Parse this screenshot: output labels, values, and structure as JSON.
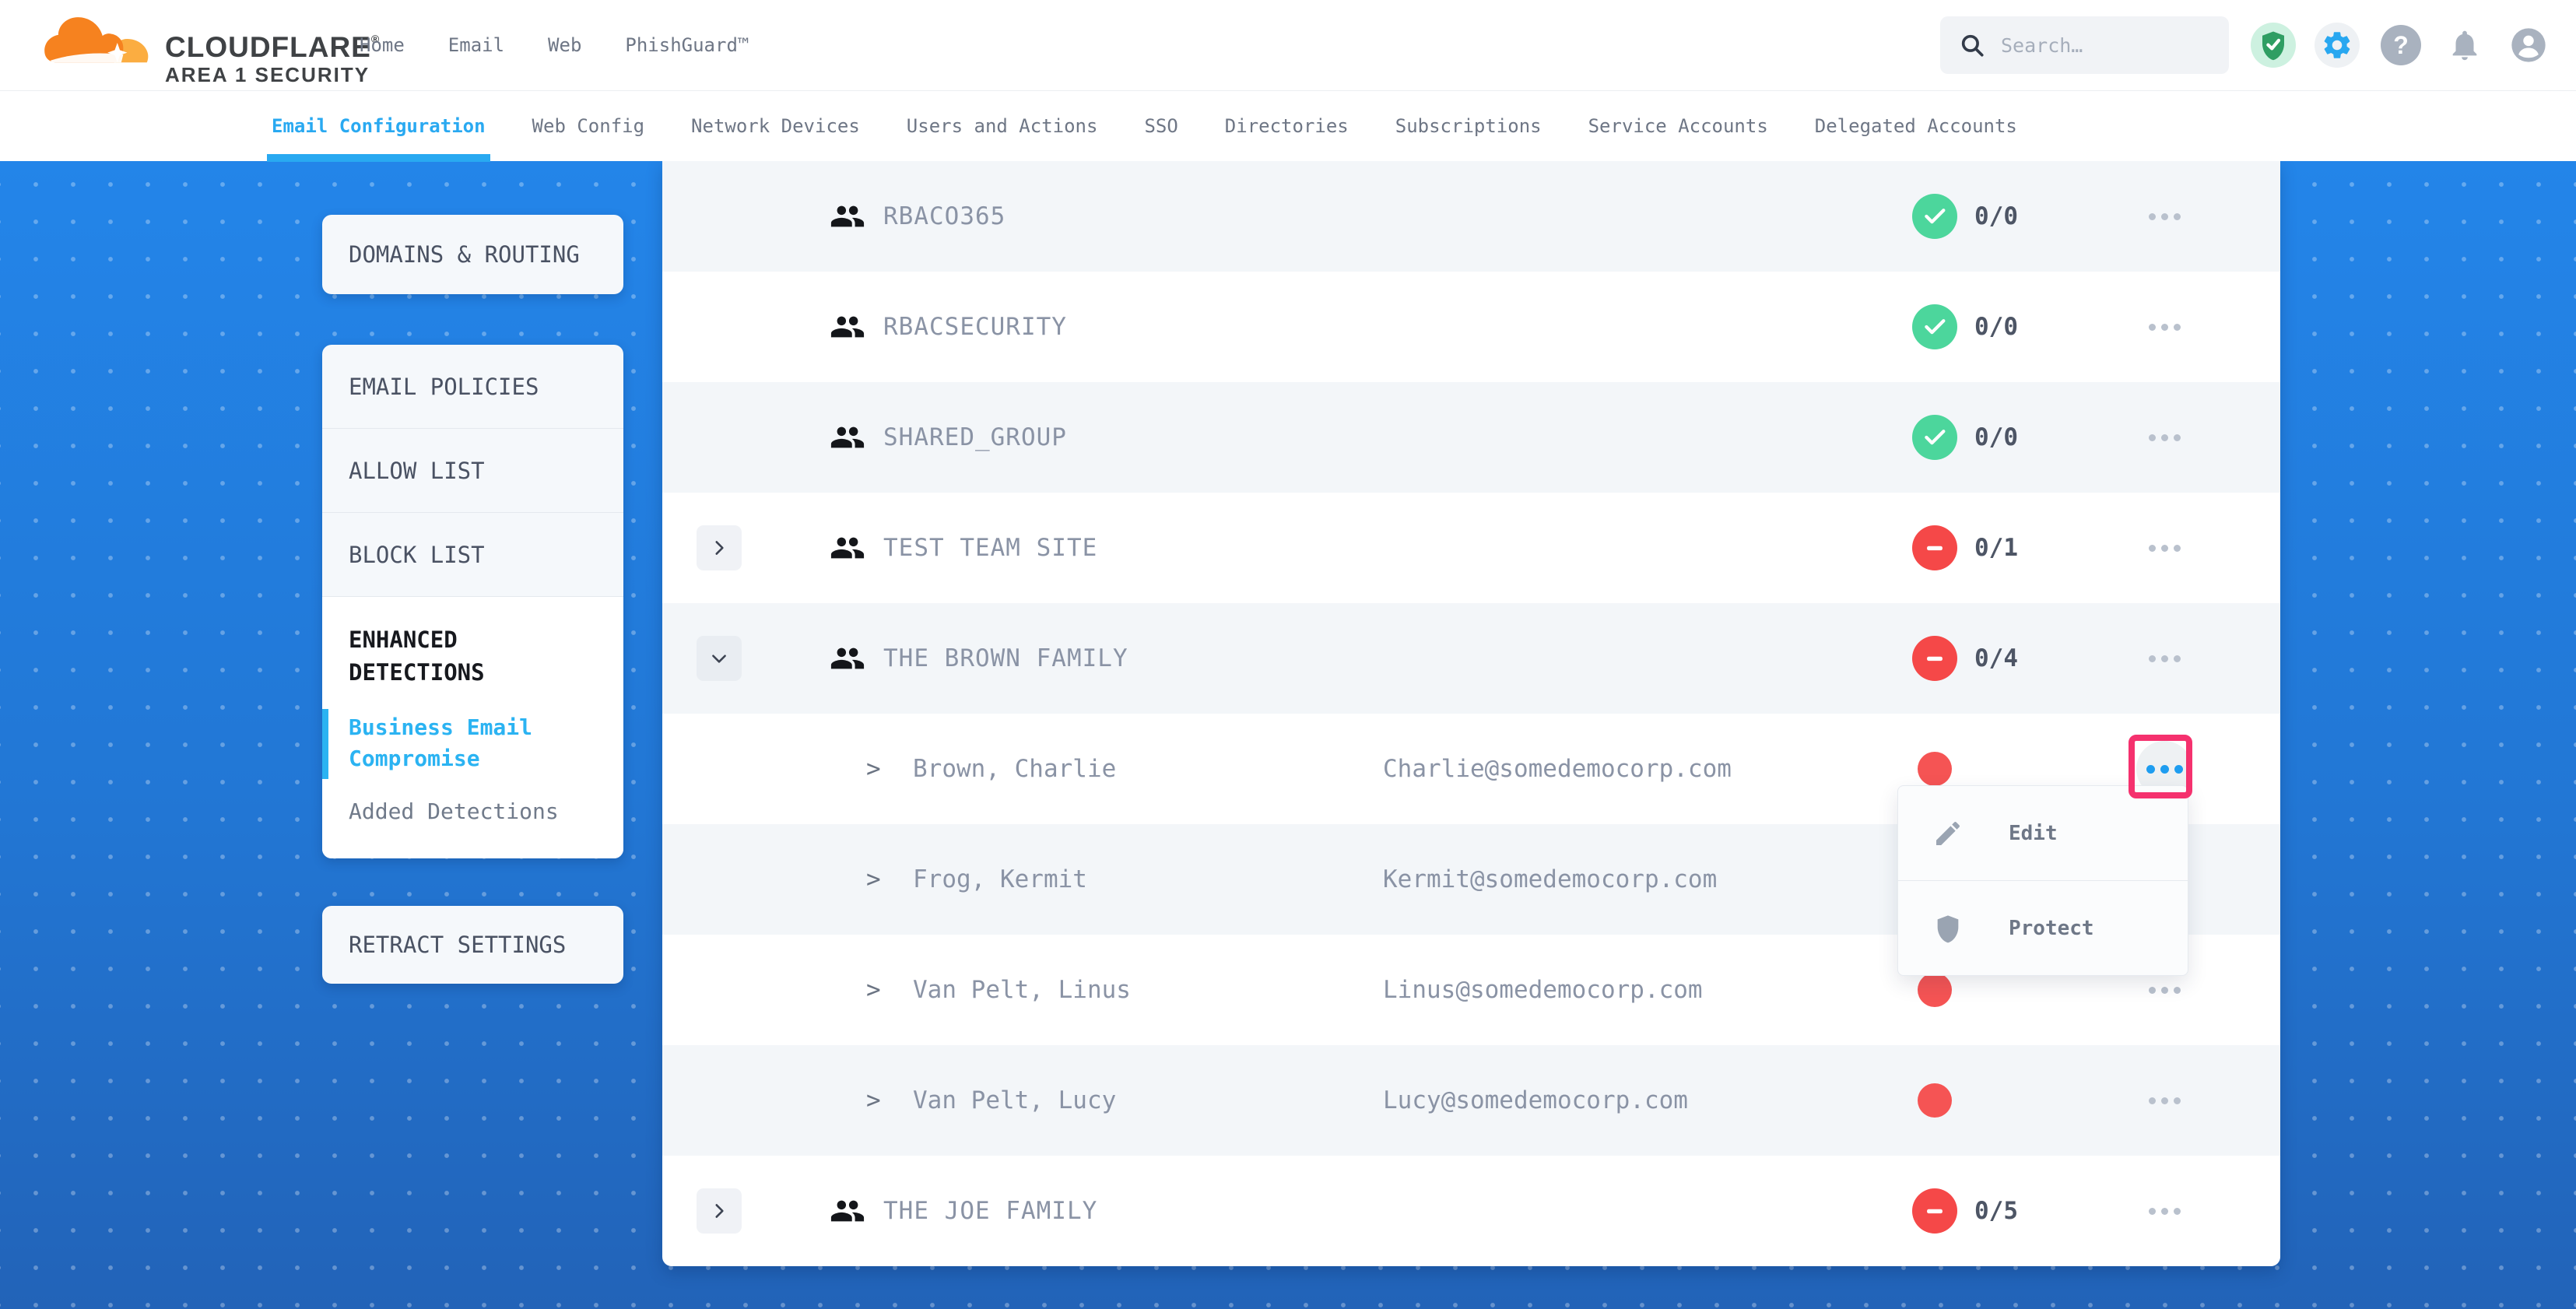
{
  "header": {
    "logo": {
      "brand": "CLOUDFLARE",
      "registered": "®",
      "sub": "AREA 1 SECURITY"
    },
    "nav": [
      "Home",
      "Email",
      "Web",
      "PhishGuard™"
    ],
    "search": {
      "placeholder": "Search…"
    },
    "icons": [
      "shield-check-icon",
      "gear-icon",
      "help-icon",
      "bell-icon",
      "account-icon"
    ]
  },
  "subnav": {
    "tabs": [
      {
        "label": "Email Configuration",
        "active": true
      },
      {
        "label": "Web Config",
        "active": false
      },
      {
        "label": "Network Devices",
        "active": false
      },
      {
        "label": "Users and Actions",
        "active": false
      },
      {
        "label": "SSO",
        "active": false
      },
      {
        "label": "Directories",
        "active": false
      },
      {
        "label": "Subscriptions",
        "active": false
      },
      {
        "label": "Service Accounts",
        "active": false
      },
      {
        "label": "Delegated Accounts",
        "active": false
      }
    ]
  },
  "sidebar": {
    "domains_routing": "DOMAINS & ROUTING",
    "policy_items": [
      "EMAIL POLICIES",
      "ALLOW LIST",
      "BLOCK LIST"
    ],
    "enhanced": {
      "title": "ENHANCED DETECTIONS",
      "items": [
        {
          "label": "Business Email Compromise",
          "active": true
        },
        {
          "label": "Added Detections",
          "active": false
        }
      ]
    },
    "retract": "RETRACT SETTINGS"
  },
  "table": {
    "rows": [
      {
        "kind": "group",
        "name": "RBACO365",
        "count": "0/0",
        "status": "ok",
        "expandable": false
      },
      {
        "kind": "group",
        "name": "RBACSECURITY",
        "count": "0/0",
        "status": "ok",
        "expandable": false
      },
      {
        "kind": "group",
        "name": "SHARED_GROUP",
        "count": "0/0",
        "status": "ok",
        "expandable": false
      },
      {
        "kind": "group",
        "name": "TEST TEAM SITE",
        "count": "0/1",
        "status": "alert",
        "expandable": true,
        "expanded": false
      },
      {
        "kind": "group",
        "name": "THE BROWN FAMILY",
        "count": "0/4",
        "status": "alert",
        "expandable": true,
        "expanded": true
      },
      {
        "kind": "member",
        "name": "Brown, Charlie",
        "email": "Charlie@somedemocorp.com",
        "status": "alert",
        "menu_open": true
      },
      {
        "kind": "member",
        "name": "Frog, Kermit",
        "email": "Kermit@somedemocorp.com",
        "status": "alert"
      },
      {
        "kind": "member",
        "name": "Van Pelt, Linus",
        "email": "Linus@somedemocorp.com",
        "status": "alert"
      },
      {
        "kind": "member",
        "name": "Van Pelt, Lucy",
        "email": "Lucy@somedemocorp.com",
        "status": "alert"
      },
      {
        "kind": "group",
        "name": "THE JOE FAMILY",
        "count": "0/5",
        "status": "alert",
        "expandable": true,
        "expanded": false
      }
    ]
  },
  "context_menu": {
    "items": [
      {
        "icon": "pencil-icon",
        "label": "Edit"
      },
      {
        "icon": "shield-icon",
        "label": "Protect"
      }
    ]
  },
  "colors": {
    "accent_blue": "#29a9f1",
    "brand_orange": "#f6821f",
    "brand_orange_light": "#fbad41",
    "status_green": "#4cd69c",
    "status_red": "#f54848",
    "annotation_pink": "#f5316e",
    "background_top": "#2385e9",
    "background_bottom": "#2263b8"
  }
}
